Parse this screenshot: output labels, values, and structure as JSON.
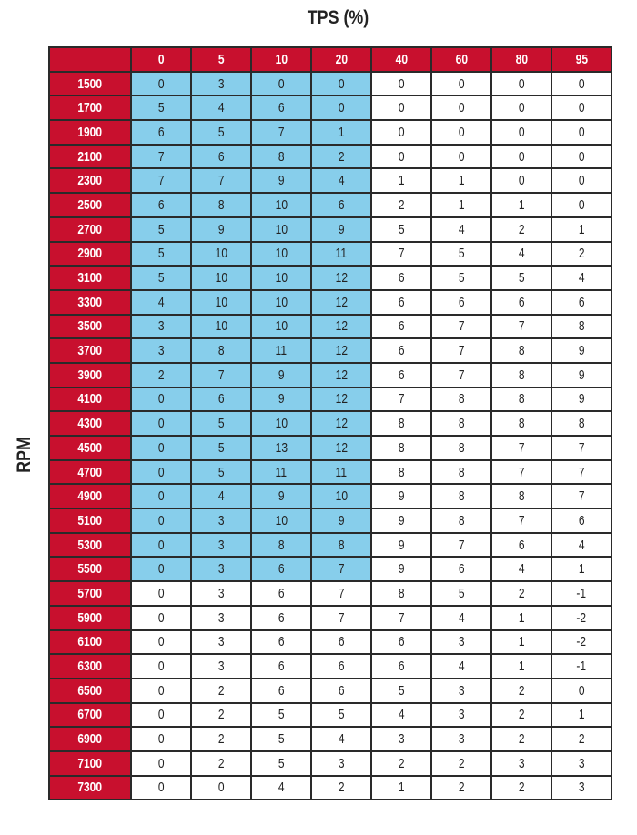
{
  "chart_data": {
    "type": "table",
    "title": "TPS (%)",
    "ylabel": "RPM",
    "columns": [
      "0",
      "5",
      "10",
      "20",
      "40",
      "60",
      "80",
      "95"
    ],
    "rows": [
      {
        "rpm": "1500",
        "values": [
          0,
          3,
          0,
          0,
          0,
          0,
          0,
          0
        ]
      },
      {
        "rpm": "1700",
        "values": [
          5,
          4,
          6,
          0,
          0,
          0,
          0,
          0
        ]
      },
      {
        "rpm": "1900",
        "values": [
          6,
          5,
          7,
          1,
          0,
          0,
          0,
          0
        ]
      },
      {
        "rpm": "2100",
        "values": [
          7,
          6,
          8,
          2,
          0,
          0,
          0,
          0
        ]
      },
      {
        "rpm": "2300",
        "values": [
          7,
          7,
          9,
          4,
          1,
          1,
          0,
          0
        ]
      },
      {
        "rpm": "2500",
        "values": [
          6,
          8,
          10,
          6,
          2,
          1,
          1,
          0
        ]
      },
      {
        "rpm": "2700",
        "values": [
          5,
          9,
          10,
          9,
          5,
          4,
          2,
          1
        ]
      },
      {
        "rpm": "2900",
        "values": [
          5,
          10,
          10,
          11,
          7,
          5,
          4,
          2
        ]
      },
      {
        "rpm": "3100",
        "values": [
          5,
          10,
          10,
          12,
          6,
          5,
          5,
          4
        ]
      },
      {
        "rpm": "3300",
        "values": [
          4,
          10,
          10,
          12,
          6,
          6,
          6,
          6
        ]
      },
      {
        "rpm": "3500",
        "values": [
          3,
          10,
          10,
          12,
          6,
          7,
          7,
          8
        ]
      },
      {
        "rpm": "3700",
        "values": [
          3,
          8,
          11,
          12,
          6,
          7,
          8,
          9
        ]
      },
      {
        "rpm": "3900",
        "values": [
          2,
          7,
          9,
          12,
          6,
          7,
          8,
          9
        ]
      },
      {
        "rpm": "4100",
        "values": [
          0,
          6,
          9,
          12,
          7,
          8,
          8,
          9
        ]
      },
      {
        "rpm": "4300",
        "values": [
          0,
          5,
          10,
          12,
          8,
          8,
          8,
          8
        ]
      },
      {
        "rpm": "4500",
        "values": [
          0,
          5,
          13,
          12,
          8,
          8,
          7,
          7
        ]
      },
      {
        "rpm": "4700",
        "values": [
          0,
          5,
          11,
          11,
          8,
          8,
          7,
          7
        ]
      },
      {
        "rpm": "4900",
        "values": [
          0,
          4,
          9,
          10,
          9,
          8,
          8,
          7
        ]
      },
      {
        "rpm": "5100",
        "values": [
          0,
          3,
          10,
          9,
          9,
          8,
          7,
          6
        ]
      },
      {
        "rpm": "5300",
        "values": [
          0,
          3,
          8,
          8,
          9,
          7,
          6,
          4
        ]
      },
      {
        "rpm": "5500",
        "values": [
          0,
          3,
          6,
          7,
          9,
          6,
          4,
          1
        ]
      },
      {
        "rpm": "5700",
        "values": [
          0,
          3,
          6,
          7,
          8,
          5,
          2,
          -1
        ]
      },
      {
        "rpm": "5900",
        "values": [
          0,
          3,
          6,
          7,
          7,
          4,
          1,
          -2
        ]
      },
      {
        "rpm": "6100",
        "values": [
          0,
          3,
          6,
          6,
          6,
          3,
          1,
          -2
        ]
      },
      {
        "rpm": "6300",
        "values": [
          0,
          3,
          6,
          6,
          6,
          4,
          1,
          -1
        ]
      },
      {
        "rpm": "6500",
        "values": [
          0,
          2,
          6,
          6,
          5,
          3,
          2,
          0
        ]
      },
      {
        "rpm": "6700",
        "values": [
          0,
          2,
          5,
          5,
          4,
          3,
          2,
          1
        ]
      },
      {
        "rpm": "6900",
        "values": [
          0,
          2,
          5,
          4,
          3,
          3,
          2,
          2
        ]
      },
      {
        "rpm": "7100",
        "values": [
          0,
          2,
          5,
          3,
          2,
          2,
          3,
          3
        ]
      },
      {
        "rpm": "7300",
        "values": [
          0,
          0,
          4,
          2,
          1,
          2,
          2,
          3
        ]
      }
    ],
    "highlighted_region": {
      "rpm_from": "1500",
      "rpm_to": "5500",
      "tps_columns": [
        "0",
        "5",
        "10",
        "20"
      ]
    },
    "colors": {
      "header": "#c8102e",
      "highlight": "#87ceeb",
      "cell": "#ffffff",
      "border": "#2a2a2a"
    }
  }
}
